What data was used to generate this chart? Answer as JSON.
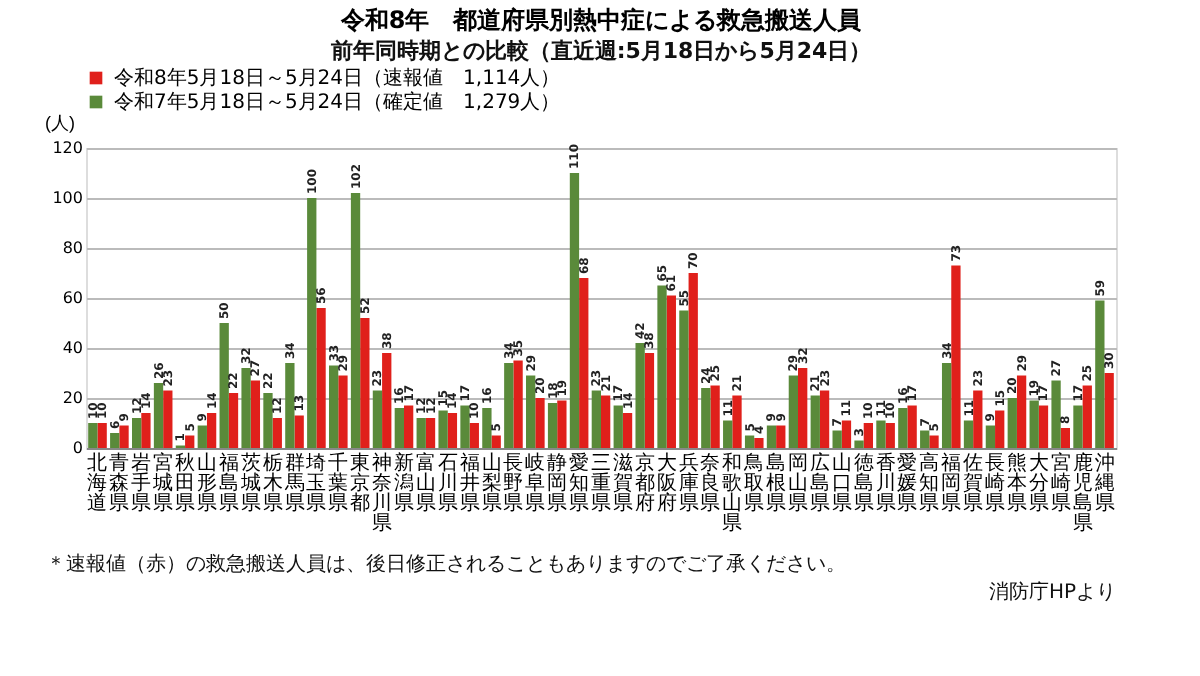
{
  "chart_data": {
    "type": "bar",
    "title": "令和8年　都道府県別熱中症による救急搬送人員",
    "subtitle": "前年同時期との比較（直近週:5月18日から5月24日）",
    "ylabel": "(人)",
    "categories": [
      "北海道",
      "青森県",
      "岩手県",
      "宮城県",
      "秋田県",
      "山形県",
      "福島県",
      "茨城県",
      "栃木県",
      "群馬県",
      "埼玉県",
      "千葉県",
      "東京都",
      "神奈川県",
      "新潟県",
      "富山県",
      "石川県",
      "福井県",
      "山梨県",
      "長野県",
      "岐阜県",
      "静岡県",
      "愛知県",
      "三重県",
      "滋賀県",
      "京都府",
      "大阪府",
      "兵庫県",
      "奈良県",
      "和歌山県",
      "鳥取県",
      "島根県",
      "岡山県",
      "広島県",
      "山口県",
      "徳島県",
      "香川県",
      "愛媛県",
      "高知県",
      "福岡県",
      "佐賀県",
      "長崎県",
      "熊本県",
      "大分県",
      "宮崎県",
      "鹿児島県",
      "沖縄県"
    ],
    "series": [
      {
        "name": "令和8年5月18日～5月24日（速報値　1,114人）",
        "color": "#e0201b",
        "values": [
          10,
          9,
          14,
          23,
          5,
          14,
          22,
          27,
          12,
          13,
          56,
          29,
          52,
          38,
          17,
          12,
          14,
          10,
          5,
          35,
          20,
          19,
          68,
          21,
          14,
          38,
          61,
          70,
          25,
          21,
          4,
          9,
          32,
          23,
          11,
          10,
          10,
          17,
          5,
          73,
          23,
          15,
          29,
          17,
          8,
          25,
          30
        ]
      },
      {
        "name": "令和7年5月18日～5月24日（確定値　1,279人）",
        "color": "#5a8a3a",
        "values": [
          10,
          6,
          12,
          26,
          1,
          9,
          50,
          32,
          22,
          34,
          100,
          33,
          102,
          23,
          16,
          12,
          15,
          17,
          16,
          34,
          29,
          18,
          110,
          23,
          17,
          42,
          65,
          55,
          24,
          11,
          5,
          9,
          29,
          21,
          7,
          3,
          11,
          16,
          7,
          34,
          11,
          9,
          20,
          19,
          27,
          17,
          59
        ]
      }
    ],
    "ylim": [
      0,
      120
    ],
    "yticks": [
      0,
      20,
      40,
      60,
      80,
      100,
      120
    ],
    "grid": "y",
    "legend": "top",
    "data_labels": true,
    "annotations": [
      "＊速報値（赤）の救急搬送人員は、後日修正されることもありますのでご了承ください。",
      "消防庁HPより"
    ]
  }
}
